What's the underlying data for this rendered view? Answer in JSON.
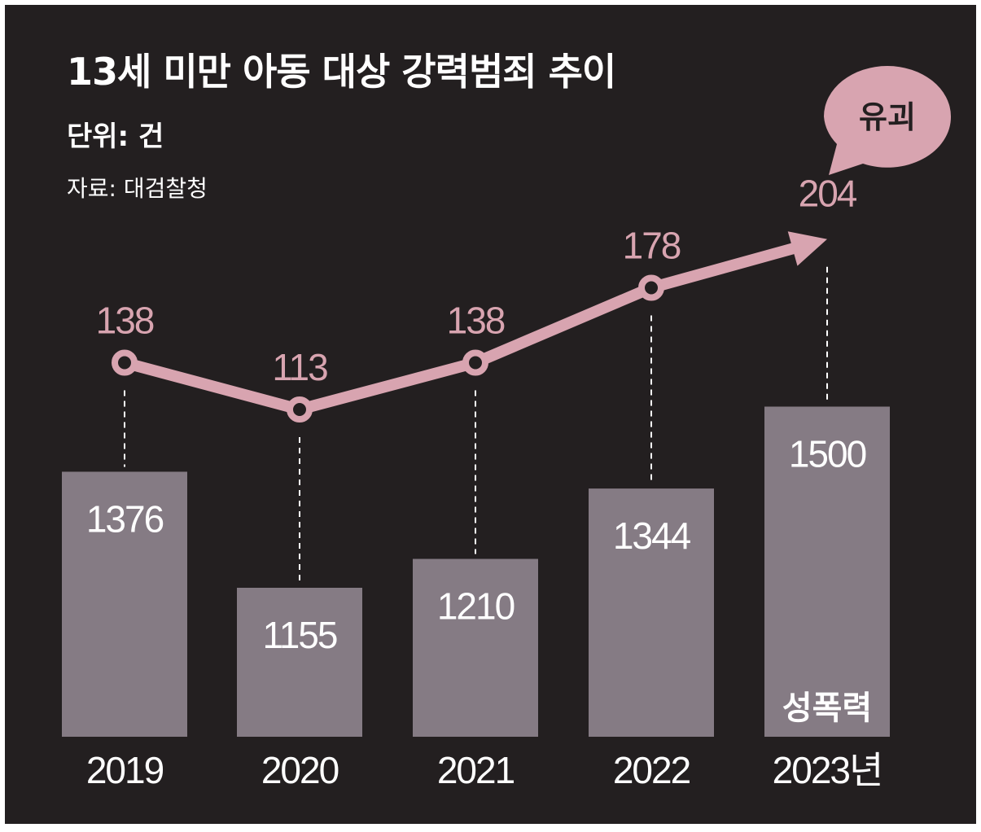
{
  "title": "13세 미만 아동 대상 강력범죄 추이",
  "unit": "단위: 건",
  "source": "자료: 대검찰청",
  "colors": {
    "background": "#231f20",
    "bar": "#857b84",
    "line": "#d8a4b0",
    "text": "#ffffff"
  },
  "chart_data": [
    {
      "type": "bar",
      "name": "성폭력",
      "categories": [
        "2019",
        "2020",
        "2021",
        "2022",
        "2023년"
      ],
      "values": [
        1376,
        1155,
        1210,
        1344,
        1500
      ],
      "annotation": "성폭력"
    },
    {
      "type": "line",
      "name": "유괴",
      "categories": [
        "2019",
        "2020",
        "2021",
        "2022",
        "2023년"
      ],
      "values": [
        138,
        113,
        138,
        178,
        204
      ],
      "annotation": "유괴"
    }
  ]
}
